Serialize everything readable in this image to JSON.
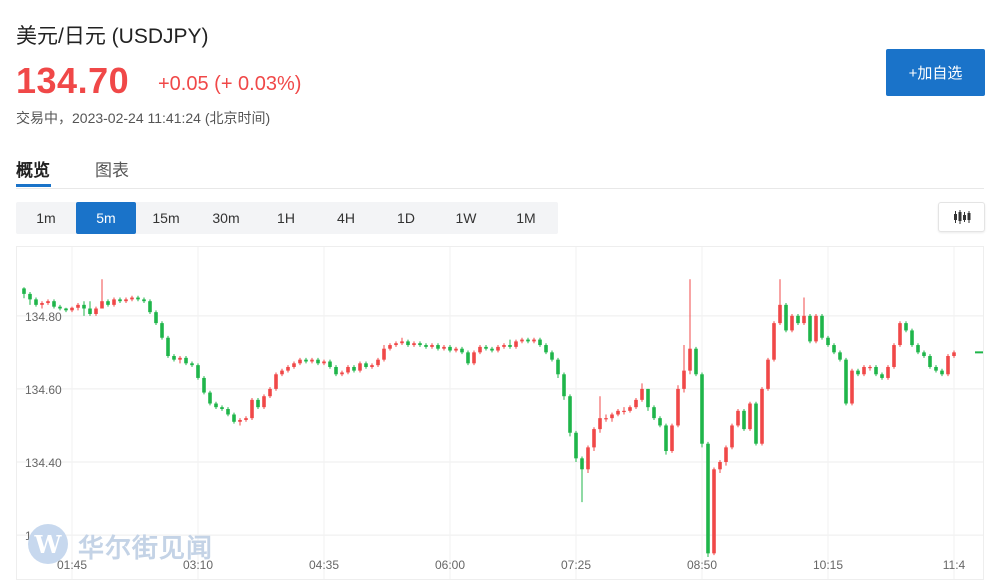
{
  "header": {
    "title": "美元/日元  (USDJPY)",
    "price": "134.70",
    "change": "+0.05 (+ 0.03%)",
    "status": "交易中，2023-02-24 11:41:24 (北京时间)",
    "add_button": "+加自选"
  },
  "tabs": [
    {
      "label": "概览",
      "active": true
    },
    {
      "label": "图表",
      "active": false
    }
  ],
  "intervals": [
    {
      "label": "1m",
      "active": false
    },
    {
      "label": "5m",
      "active": true
    },
    {
      "label": "15m",
      "active": false
    },
    {
      "label": "30m",
      "active": false
    },
    {
      "label": "1H",
      "active": false
    },
    {
      "label": "4H",
      "active": false
    },
    {
      "label": "1D",
      "active": false
    },
    {
      "label": "1W",
      "active": false
    },
    {
      "label": "1M",
      "active": false
    }
  ],
  "chart_type_icon": "candlestick-icon",
  "colors": {
    "up": "#f04848",
    "down": "#1fb54a",
    "accent": "#1a73c9"
  },
  "watermark": {
    "logo_letter": "W",
    "text": "华尔街见闻"
  },
  "chart_data": {
    "type": "candlestick",
    "interval": "5m",
    "ylim": [
      134.14,
      134.95
    ],
    "yticks": [
      {
        "value": 134.8,
        "label": "134.80"
      },
      {
        "value": 134.6,
        "label": "134.60"
      },
      {
        "value": 134.4,
        "label": "134.40"
      },
      {
        "value": 134.2,
        "label": "134.20"
      }
    ],
    "xticks": [
      {
        "index": 8,
        "label": "01:45"
      },
      {
        "index": 29,
        "label": "03:10"
      },
      {
        "index": 50,
        "label": "04:35"
      },
      {
        "index": 71,
        "label": "06:00"
      },
      {
        "index": 92,
        "label": "07:25"
      },
      {
        "index": 113,
        "label": "08:50"
      },
      {
        "index": 134,
        "label": "10:15"
      },
      {
        "index": 155,
        "label": "11:4"
      }
    ],
    "grid": true,
    "last_price": 134.7,
    "candles": [
      [
        134.875,
        134.86,
        134.878,
        134.848
      ],
      [
        134.86,
        134.845,
        134.865,
        134.83
      ],
      [
        134.845,
        134.83,
        134.85,
        134.825
      ],
      [
        134.83,
        134.835,
        134.84,
        134.82
      ],
      [
        134.835,
        134.84,
        134.845,
        134.83
      ],
      [
        134.84,
        134.825,
        134.845,
        134.82
      ],
      [
        134.825,
        134.82,
        134.83,
        134.815
      ],
      [
        134.82,
        134.815,
        134.822,
        134.81
      ],
      [
        134.815,
        134.822,
        134.825,
        134.81
      ],
      [
        134.822,
        134.83,
        134.835,
        134.815
      ],
      [
        134.83,
        134.82,
        134.84,
        134.8
      ],
      [
        134.82,
        134.805,
        134.84,
        134.8
      ],
      [
        134.805,
        134.82,
        134.825,
        134.8
      ],
      [
        134.82,
        134.84,
        134.9,
        134.82
      ],
      [
        134.84,
        134.83,
        134.845,
        134.825
      ],
      [
        134.83,
        134.845,
        134.85,
        134.825
      ],
      [
        134.845,
        134.84,
        134.85,
        134.835
      ],
      [
        134.84,
        134.845,
        134.85,
        134.835
      ],
      [
        134.845,
        134.85,
        134.855,
        134.84
      ],
      [
        134.85,
        134.845,
        134.855,
        134.84
      ],
      [
        134.845,
        134.84,
        134.85,
        134.835
      ],
      [
        134.84,
        134.81,
        134.845,
        134.805
      ],
      [
        134.81,
        134.78,
        134.815,
        134.775
      ],
      [
        134.78,
        134.74,
        134.785,
        134.735
      ],
      [
        134.74,
        134.69,
        134.745,
        134.685
      ],
      [
        134.69,
        134.68,
        134.695,
        134.675
      ],
      [
        134.68,
        134.685,
        134.69,
        134.67
      ],
      [
        134.685,
        134.67,
        134.69,
        134.665
      ],
      [
        134.67,
        134.665,
        134.675,
        134.66
      ],
      [
        134.665,
        134.63,
        134.67,
        134.625
      ],
      [
        134.63,
        134.59,
        134.635,
        134.585
      ],
      [
        134.59,
        134.56,
        134.595,
        134.555
      ],
      [
        134.56,
        134.55,
        134.565,
        134.545
      ],
      [
        134.55,
        134.545,
        134.555,
        134.54
      ],
      [
        134.545,
        134.53,
        134.55,
        134.525
      ],
      [
        134.53,
        134.51,
        134.535,
        134.505
      ],
      [
        134.51,
        134.515,
        134.52,
        134.5
      ],
      [
        134.515,
        134.52,
        134.525,
        134.51
      ],
      [
        134.52,
        134.57,
        134.575,
        134.515
      ],
      [
        134.57,
        134.55,
        134.575,
        134.545
      ],
      [
        134.55,
        134.58,
        134.585,
        134.545
      ],
      [
        134.58,
        134.6,
        134.605,
        134.575
      ],
      [
        134.6,
        134.64,
        134.645,
        134.595
      ],
      [
        134.64,
        134.65,
        134.655,
        134.635
      ],
      [
        134.65,
        134.66,
        134.665,
        134.645
      ],
      [
        134.66,
        134.67,
        134.675,
        134.655
      ],
      [
        134.67,
        134.68,
        134.685,
        134.665
      ],
      [
        134.68,
        134.675,
        134.685,
        134.67
      ],
      [
        134.675,
        134.68,
        134.685,
        134.67
      ],
      [
        134.68,
        134.67,
        134.685,
        134.665
      ],
      [
        134.67,
        134.675,
        134.68,
        134.665
      ],
      [
        134.675,
        134.66,
        134.68,
        134.655
      ],
      [
        134.66,
        134.64,
        134.665,
        134.635
      ],
      [
        134.64,
        134.645,
        134.65,
        134.635
      ],
      [
        134.645,
        134.66,
        134.665,
        134.64
      ],
      [
        134.66,
        134.65,
        134.665,
        134.645
      ],
      [
        134.65,
        134.67,
        134.675,
        134.645
      ],
      [
        134.67,
        134.66,
        134.675,
        134.655
      ],
      [
        134.66,
        134.665,
        134.67,
        134.655
      ],
      [
        134.665,
        134.68,
        134.685,
        134.66
      ],
      [
        134.68,
        134.71,
        134.72,
        134.675
      ],
      [
        134.71,
        134.72,
        134.725,
        134.705
      ],
      [
        134.72,
        134.725,
        134.73,
        134.715
      ],
      [
        134.725,
        134.73,
        134.74,
        134.72
      ],
      [
        134.73,
        134.72,
        134.735,
        134.715
      ],
      [
        134.72,
        134.725,
        134.73,
        134.715
      ],
      [
        134.725,
        134.72,
        134.73,
        134.715
      ],
      [
        134.72,
        134.715,
        134.725,
        134.71
      ],
      [
        134.715,
        134.72,
        134.725,
        134.71
      ],
      [
        134.72,
        134.71,
        134.725,
        134.705
      ],
      [
        134.71,
        134.715,
        134.72,
        134.705
      ],
      [
        134.715,
        134.705,
        134.72,
        134.7
      ],
      [
        134.705,
        134.71,
        134.715,
        134.7
      ],
      [
        134.71,
        134.7,
        134.715,
        134.695
      ],
      [
        134.7,
        134.67,
        134.705,
        134.665
      ],
      [
        134.67,
        134.7,
        134.705,
        134.665
      ],
      [
        134.7,
        134.715,
        134.72,
        134.695
      ],
      [
        134.715,
        134.71,
        134.72,
        134.705
      ],
      [
        134.71,
        134.705,
        134.715,
        134.7
      ],
      [
        134.705,
        134.715,
        134.72,
        134.7
      ],
      [
        134.715,
        134.72,
        134.725,
        134.71
      ],
      [
        134.72,
        134.715,
        134.735,
        134.71
      ],
      [
        134.715,
        134.73,
        134.735,
        134.71
      ],
      [
        134.73,
        134.735,
        134.74,
        134.725
      ],
      [
        134.735,
        134.73,
        134.74,
        134.725
      ],
      [
        134.73,
        134.735,
        134.74,
        134.725
      ],
      [
        134.735,
        134.72,
        134.74,
        134.715
      ],
      [
        134.72,
        134.7,
        134.725,
        134.695
      ],
      [
        134.7,
        134.68,
        134.705,
        134.675
      ],
      [
        134.68,
        134.64,
        134.685,
        134.63
      ],
      [
        134.64,
        134.58,
        134.645,
        134.57
      ],
      [
        134.58,
        134.48,
        134.585,
        134.47
      ],
      [
        134.48,
        134.41,
        134.485,
        134.4
      ],
      [
        134.41,
        134.38,
        134.415,
        134.29
      ],
      [
        134.38,
        134.44,
        134.445,
        134.37
      ],
      [
        134.44,
        134.49,
        134.495,
        134.43
      ],
      [
        134.49,
        134.52,
        134.58,
        134.48
      ],
      [
        134.52,
        134.52,
        134.53,
        134.51
      ],
      [
        134.52,
        134.53,
        134.535,
        134.51
      ],
      [
        134.53,
        134.54,
        134.545,
        134.525
      ],
      [
        134.54,
        134.54,
        134.55,
        134.53
      ],
      [
        134.54,
        134.55,
        134.555,
        134.535
      ],
      [
        134.55,
        134.57,
        134.575,
        134.545
      ],
      [
        134.57,
        134.6,
        134.615,
        134.565
      ],
      [
        134.6,
        134.55,
        134.6,
        134.54
      ],
      [
        134.55,
        134.52,
        134.555,
        134.515
      ],
      [
        134.52,
        134.5,
        134.525,
        134.495
      ],
      [
        134.5,
        134.43,
        134.505,
        134.42
      ],
      [
        134.43,
        134.5,
        134.505,
        134.425
      ],
      [
        134.5,
        134.6,
        134.61,
        134.495
      ],
      [
        134.6,
        134.65,
        134.72,
        134.59
      ],
      [
        134.65,
        134.71,
        134.9,
        134.64
      ],
      [
        134.71,
        134.64,
        134.715,
        134.635
      ],
      [
        134.64,
        134.45,
        134.645,
        134.44
      ],
      [
        134.45,
        134.15,
        134.455,
        134.14
      ],
      [
        134.15,
        134.38,
        134.385,
        134.145
      ],
      [
        134.38,
        134.4,
        134.405,
        134.37
      ],
      [
        134.4,
        134.44,
        134.445,
        134.39
      ],
      [
        134.44,
        134.5,
        134.505,
        134.435
      ],
      [
        134.5,
        134.54,
        134.545,
        134.495
      ],
      [
        134.54,
        134.49,
        134.545,
        134.485
      ],
      [
        134.49,
        134.56,
        134.565,
        134.485
      ],
      [
        134.56,
        134.45,
        134.565,
        134.445
      ],
      [
        134.45,
        134.6,
        134.605,
        134.445
      ],
      [
        134.6,
        134.68,
        134.685,
        134.595
      ],
      [
        134.68,
        134.78,
        134.785,
        134.675
      ],
      [
        134.78,
        134.83,
        134.9,
        134.775
      ],
      [
        134.83,
        134.76,
        134.835,
        134.755
      ],
      [
        134.76,
        134.8,
        134.805,
        134.755
      ],
      [
        134.8,
        134.78,
        134.805,
        134.775
      ],
      [
        134.78,
        134.8,
        134.85,
        134.775
      ],
      [
        134.8,
        134.73,
        134.805,
        134.725
      ],
      [
        134.73,
        134.8,
        134.805,
        134.725
      ],
      [
        134.8,
        134.74,
        134.805,
        134.735
      ],
      [
        134.74,
        134.72,
        134.745,
        134.715
      ],
      [
        134.72,
        134.7,
        134.725,
        134.695
      ],
      [
        134.7,
        134.68,
        134.705,
        134.675
      ],
      [
        134.68,
        134.56,
        134.685,
        134.555
      ],
      [
        134.56,
        134.65,
        134.655,
        134.555
      ],
      [
        134.65,
        134.64,
        134.655,
        134.635
      ],
      [
        134.64,
        134.66,
        134.665,
        134.635
      ],
      [
        134.66,
        134.66,
        134.665,
        134.65
      ],
      [
        134.66,
        134.64,
        134.665,
        134.635
      ],
      [
        134.64,
        134.63,
        134.645,
        134.625
      ],
      [
        134.63,
        134.66,
        134.665,
        134.625
      ],
      [
        134.66,
        134.72,
        134.725,
        134.655
      ],
      [
        134.72,
        134.78,
        134.785,
        134.715
      ],
      [
        134.78,
        134.76,
        134.785,
        134.755
      ],
      [
        134.76,
        134.72,
        134.765,
        134.715
      ],
      [
        134.72,
        134.7,
        134.725,
        134.695
      ],
      [
        134.7,
        134.69,
        134.705,
        134.685
      ],
      [
        134.69,
        134.66,
        134.695,
        134.655
      ],
      [
        134.66,
        134.65,
        134.665,
        134.645
      ],
      [
        134.65,
        134.64,
        134.655,
        134.635
      ],
      [
        134.64,
        134.69,
        134.695,
        134.635
      ],
      [
        134.69,
        134.7,
        134.705,
        134.685
      ]
    ]
  }
}
